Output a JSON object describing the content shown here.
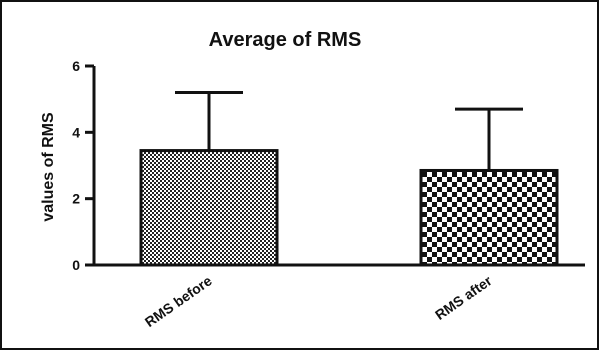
{
  "chart_data": {
    "type": "bar",
    "title": "Average of RMS",
    "xlabel": "",
    "ylabel": "values of RMS",
    "ylim": [
      0,
      6
    ],
    "yticks": [
      0,
      2,
      4,
      6
    ],
    "categories": [
      "RMS before",
      "RMS after"
    ],
    "values": [
      3.45,
      2.85
    ],
    "error_upper": [
      5.2,
      4.7
    ],
    "patterns": [
      "fine-checker",
      "coarse-checker"
    ],
    "grid": false,
    "legend": "none"
  },
  "colors": {
    "axis": "#111111",
    "bar_dark": "#111111",
    "bar_light": "#ffffff",
    "background": "#ffffff"
  }
}
